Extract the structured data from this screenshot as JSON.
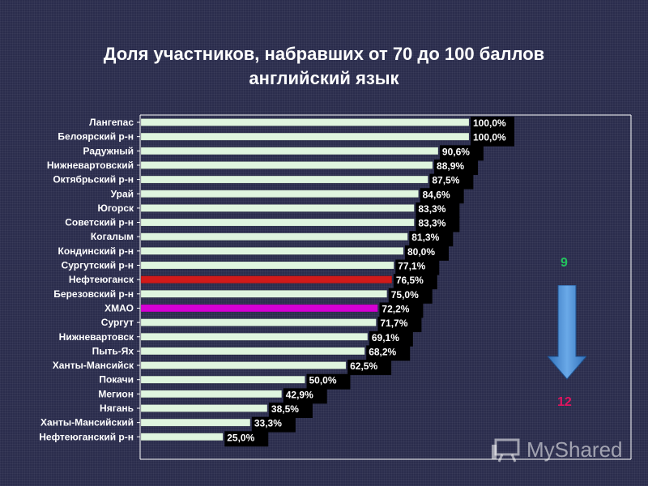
{
  "title": {
    "line1": "Доля участников, набравших от 70 до 100 баллов",
    "line2": "английский язык"
  },
  "ranking": {
    "from": "9",
    "to": "12",
    "from_color": "#22c55e",
    "to_color": "#e0155f",
    "arrow_color": "#4a8fd6"
  },
  "watermark": {
    "text": "MyShared",
    "icon": "presentation-board-icon"
  },
  "colors": {
    "bar_default": "#dff5df",
    "bar_highlight_red": "#d11a1a",
    "bar_highlight_magenta": "#d400d4",
    "label_background": "#000000",
    "label_text": "#ffffff",
    "category_text": "#ffffff"
  },
  "chart_data": {
    "type": "bar",
    "orientation": "horizontal",
    "categories": [
      "Лангепас",
      "Белоярский р-н",
      "Радужный",
      "Нижневартовский",
      "Октябрьский р-н",
      "Урай",
      "Югорск",
      "Советский р-н",
      "Когалым",
      "Кондинский р-н",
      "Сургутский р-н",
      "Нефтеюганск",
      "Березовский р-н",
      "ХМАО",
      "Сургут",
      "Нижневартовск",
      "Пыть-Ях",
      "Ханты-Мансийск",
      "Покачи",
      "Мегион",
      "Нягань",
      "Ханты-Мансийский",
      "Нефтеюганский р-н"
    ],
    "values": [
      100.0,
      100.0,
      90.6,
      88.9,
      87.5,
      84.6,
      83.3,
      83.3,
      81.3,
      80.0,
      77.1,
      76.5,
      75.0,
      72.2,
      71.7,
      69.1,
      68.2,
      62.5,
      50.0,
      42.9,
      38.5,
      33.3,
      25.0
    ],
    "value_labels": [
      "100,0%",
      "100,0%",
      "90,6%",
      "88,9%",
      "87,5%",
      "84,6%",
      "83,3%",
      "83,3%",
      "81,3%",
      "80,0%",
      "77,1%",
      "76,5%",
      "75,0%",
      "72,2%",
      "71,7%",
      "69,1%",
      "68,2%",
      "62,5%",
      "50,0%",
      "42,9%",
      "38,5%",
      "33,3%",
      "25,0%"
    ],
    "highlight": {
      "Нефтеюганск": "red",
      "ХМАО": "magenta"
    },
    "xlim": [
      0,
      100
    ],
    "grid": false,
    "legend": "none",
    "title": "Доля участников, набравших от 70 до 100 баллов",
    "subtitle": "английский язык"
  }
}
